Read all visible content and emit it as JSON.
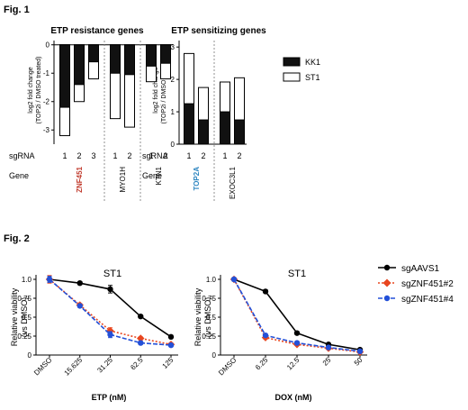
{
  "figure1": {
    "label": "Fig. 1",
    "y_axis_label_line1": "log2 fold change",
    "y_axis_label_line2": "(TOP2i / DMSO treated)",
    "row_sgrna": "sgRNA",
    "row_gene": "Gene",
    "legend": [
      {
        "name": "KK1",
        "color": "#111111"
      },
      {
        "name": "ST1",
        "color": "#ffffff"
      }
    ]
  },
  "figure2": {
    "label": "Fig. 2",
    "ylabel_line1": "Relative viability",
    "ylabel_line2": "(vs DMSO)",
    "legend": [
      {
        "name": "sgAAVS1",
        "color": "#000000",
        "dash": "none"
      },
      {
        "name": "sgZNF451#2",
        "color": "#e8461f",
        "dash": "dot"
      },
      {
        "name": "sgZNF451#4",
        "color": "#2350d8",
        "dash": "dash"
      }
    ]
  },
  "chart_data": [
    {
      "type": "bar",
      "title": "ETP resistance genes",
      "ylim": [
        -3.5,
        0
      ],
      "yticks": [
        0,
        -1,
        -2,
        -3
      ],
      "groups": [
        {
          "gene": "ZNF451",
          "gene_color": "#c0392b",
          "sgrnas": [
            "1",
            "2",
            "3"
          ]
        },
        {
          "gene": "MYO1H",
          "gene_color": "#000000",
          "sgrnas": [
            "1",
            "2"
          ]
        },
        {
          "gene": "KTN1",
          "gene_color": "#000000",
          "sgrnas": [
            "1",
            "2"
          ]
        }
      ],
      "series": [
        {
          "name": "KK1",
          "values": [
            -2.2,
            -1.4,
            -0.6,
            -1.0,
            -1.05,
            -0.75,
            -0.65
          ]
        },
        {
          "name": "ST1",
          "values": [
            -3.2,
            -2.0,
            -1.2,
            -2.6,
            -2.9,
            -1.3,
            -1.2
          ]
        }
      ]
    },
    {
      "type": "bar",
      "title": "ETP sensitizing genes",
      "ylim": [
        0,
        3
      ],
      "yticks": [
        0,
        1,
        2,
        3
      ],
      "groups": [
        {
          "gene": "TOP2A",
          "gene_color": "#2e86c1",
          "sgrnas": [
            "1",
            "2"
          ]
        },
        {
          "gene": "EXOC3L1",
          "gene_color": "#000000",
          "sgrnas": [
            "1",
            "2"
          ]
        }
      ],
      "series": [
        {
          "name": "KK1",
          "values": [
            1.25,
            0.75,
            1.0,
            0.75
          ]
        },
        {
          "name": "ST1",
          "values": [
            2.8,
            1.75,
            1.92,
            2.05
          ]
        }
      ]
    },
    {
      "type": "line",
      "title": "ST1",
      "xlabel": "ETP (nM)",
      "categories": [
        "DMSO",
        "15.625",
        "31.25",
        "62.5",
        "125"
      ],
      "ylim": [
        0,
        1.0
      ],
      "yticks": [
        0,
        0.25,
        0.5,
        0.75,
        1.0
      ],
      "series": [
        {
          "name": "sgAAVS1",
          "values": [
            1.0,
            0.95,
            0.87,
            0.51,
            0.24
          ],
          "err": [
            0.04,
            0.02,
            0.05,
            0.02,
            0.02
          ]
        },
        {
          "name": "sgZNF451#2",
          "values": [
            1.0,
            0.66,
            0.32,
            0.22,
            0.14
          ],
          "err": [
            0.05,
            0.02,
            0.04,
            0.02,
            0.02
          ]
        },
        {
          "name": "sgZNF451#4",
          "values": [
            1.0,
            0.65,
            0.27,
            0.16,
            0.13
          ],
          "err": [
            0.04,
            0.02,
            0.04,
            0.02,
            0.02
          ]
        }
      ]
    },
    {
      "type": "line",
      "title": "ST1",
      "xlabel": "DOX (nM)",
      "categories": [
        "DMSO",
        "6.25",
        "12.5",
        "25",
        "50"
      ],
      "ylim": [
        0,
        1.0
      ],
      "yticks": [
        0,
        0.25,
        0.5,
        0.75,
        1.0
      ],
      "series": [
        {
          "name": "sgAAVS1",
          "values": [
            1.0,
            0.84,
            0.29,
            0.14,
            0.07
          ],
          "err": [
            0.01,
            0.02,
            0.02,
            0.01,
            0.01
          ]
        },
        {
          "name": "sgZNF451#2",
          "values": [
            1.0,
            0.23,
            0.14,
            0.09,
            0.04
          ],
          "err": [
            0.01,
            0.02,
            0.01,
            0.01,
            0.01
          ]
        },
        {
          "name": "sgZNF451#4",
          "values": [
            1.0,
            0.26,
            0.16,
            0.1,
            0.05
          ],
          "err": [
            0.01,
            0.02,
            0.01,
            0.01,
            0.01
          ]
        }
      ]
    }
  ]
}
